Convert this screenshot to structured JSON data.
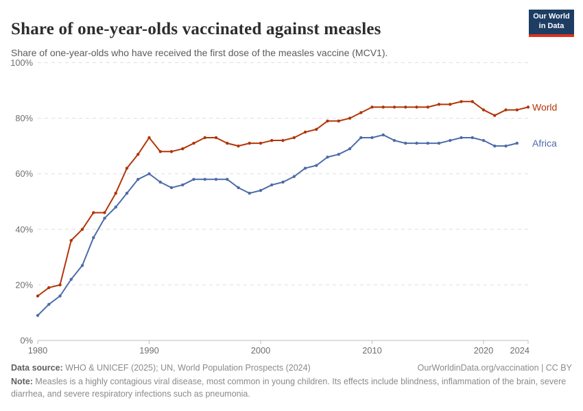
{
  "header": {
    "title": "Share of one-year-olds vaccinated against measles",
    "subtitle": "Share of one-year-olds who have received the first dose of the measles vaccine (MCV1).",
    "logo": {
      "line1": "Our World",
      "line2": "in Data"
    }
  },
  "chart_data": {
    "type": "line",
    "title": "Share of one-year-olds vaccinated against measles",
    "xlabel": "",
    "ylabel": "",
    "x_start_year": 1980,
    "x_end_year": 2024,
    "xticks": [
      1980,
      1990,
      2000,
      2010,
      2020,
      2024
    ],
    "ylim": [
      0,
      100
    ],
    "yticks": [
      0,
      20,
      40,
      60,
      80,
      100
    ],
    "ytick_suffix": "%",
    "grid": "horizontal-dashed",
    "legend_position": "right-of-line-end",
    "series": [
      {
        "name": "World",
        "color": "#b13507",
        "start_year": 1980,
        "values": [
          16,
          19,
          20,
          36,
          40,
          46,
          46,
          53,
          62,
          67,
          73,
          68,
          68,
          69,
          71,
          73,
          73,
          71,
          70,
          71,
          71,
          72,
          72,
          73,
          75,
          76,
          79,
          79,
          80,
          82,
          84,
          84,
          84,
          84,
          84,
          84,
          85,
          85,
          86,
          86,
          83,
          81,
          83,
          83,
          84
        ]
      },
      {
        "name": "Africa",
        "color": "#4c6ba9",
        "start_year": 1980,
        "values": [
          9,
          13,
          16,
          22,
          27,
          37,
          44,
          48,
          53,
          58,
          60,
          57,
          55,
          56,
          58,
          58,
          58,
          58,
          55,
          53,
          54,
          56,
          57,
          59,
          62,
          63,
          66,
          67,
          69,
          73,
          73,
          74,
          72,
          71,
          71,
          71,
          71,
          72,
          73,
          73,
          72,
          70,
          70,
          71
        ]
      }
    ]
  },
  "footer": {
    "source_label": "Data source:",
    "source_text": " WHO & UNICEF (2025); UN, World Population Prospects (2024)",
    "link_text": "OurWorldinData.org/vaccination | CC BY",
    "note_label": "Note:",
    "note_text": " Measles is a highly contagious viral disease, most common in young children. Its effects include blindness, inflammation of the brain, severe diarrhea, and severe respiratory infections such as pneumonia."
  }
}
